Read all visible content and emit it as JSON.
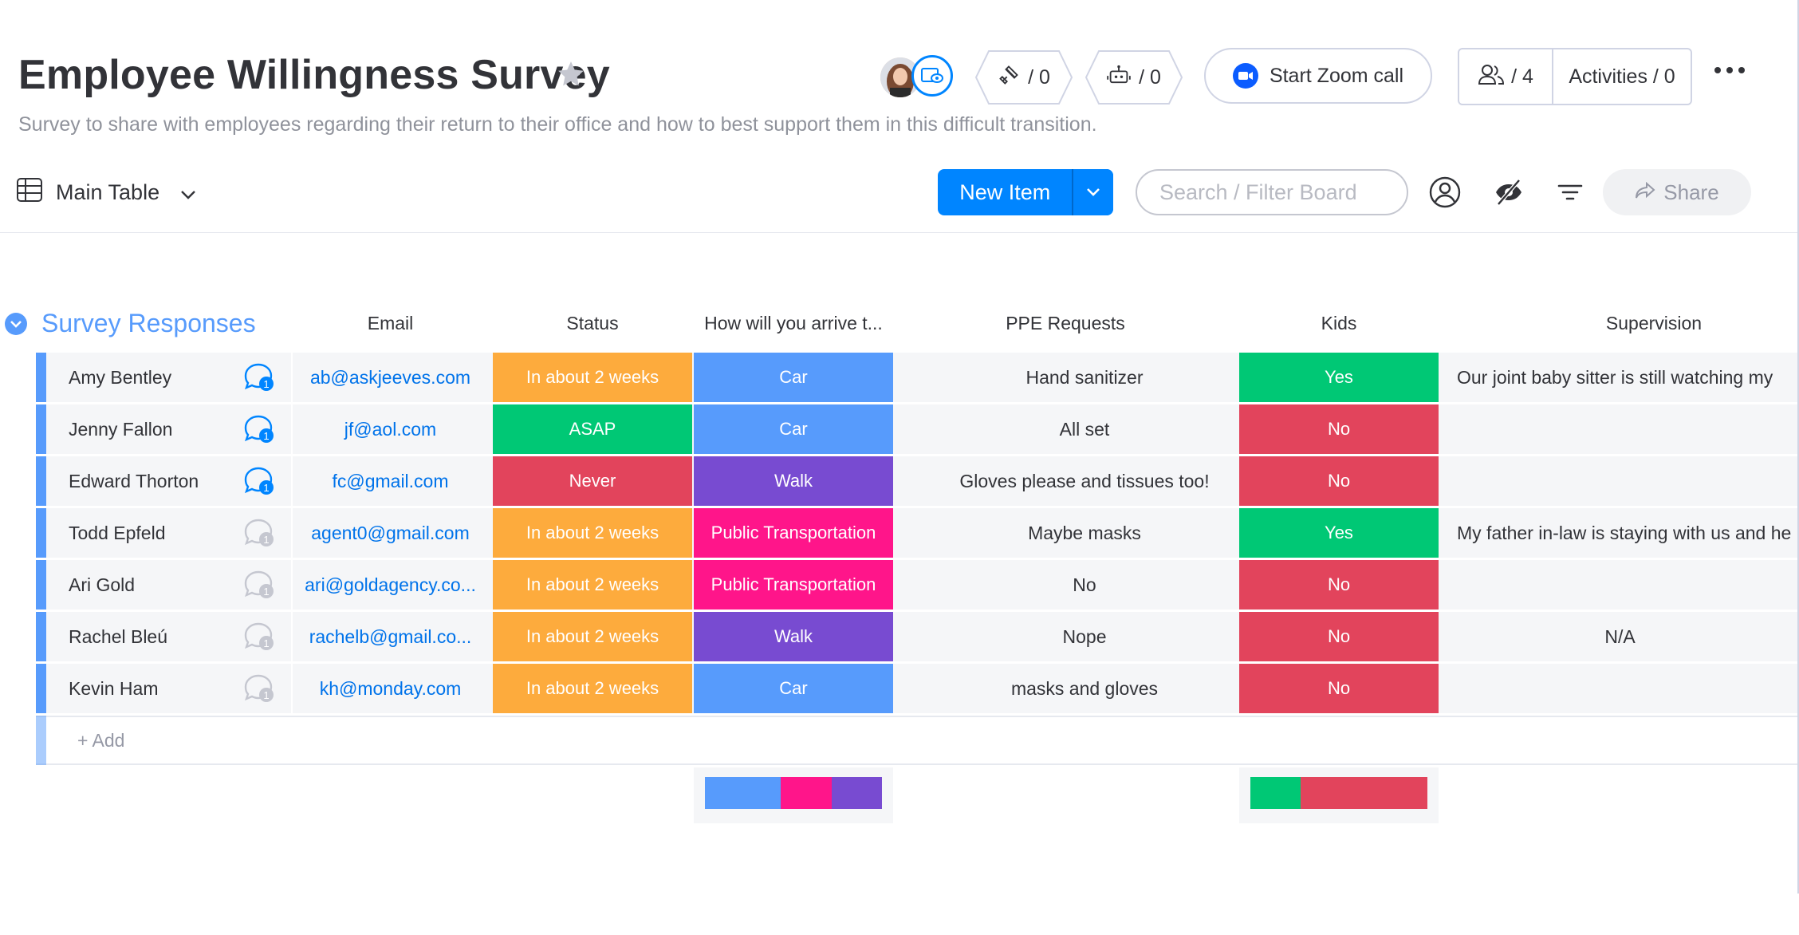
{
  "board": {
    "title": "Employee Willingness Survey",
    "description": "Survey to share with employees regarding their return to their office and how to best support them in this difficult transition."
  },
  "header": {
    "integrations_count": "/ 0",
    "automations_count": "/ 0",
    "zoom_label": "Start Zoom call",
    "members_count": "/ 4",
    "activities_label": "Activities / 0"
  },
  "toolbar": {
    "view_label": "Main Table",
    "new_item_label": "New Item",
    "search_placeholder": "Search / Filter Board",
    "share_label": "Share"
  },
  "group": {
    "title": "Survey Responses",
    "columns": [
      "Email",
      "Status",
      "How will you arrive t...",
      "PPE Requests",
      "Kids",
      "Supervision"
    ],
    "add_label": "+ Add",
    "rows": [
      {
        "name": "Amy Bentley",
        "updates": "1",
        "updates_active": true,
        "email": "ab@askjeeves.com",
        "status": "In about 2 weeks",
        "arrive": "Car",
        "ppe": "Hand sanitizer",
        "kids": "Yes",
        "supervision": "Our joint baby sitter is still watching my"
      },
      {
        "name": "Jenny Fallon",
        "updates": "1",
        "updates_active": true,
        "email": "jf@aol.com",
        "status": "ASAP",
        "arrive": "Car",
        "ppe": "All set",
        "kids": "No",
        "supervision": ""
      },
      {
        "name": "Edward Thorton",
        "updates": "1",
        "updates_active": true,
        "email": "fc@gmail.com",
        "status": "Never",
        "arrive": "Walk",
        "ppe": "Gloves please and tissues too!",
        "kids": "No",
        "supervision": ""
      },
      {
        "name": "Todd Epfeld",
        "updates": "1",
        "updates_active": false,
        "email": "agent0@gmail.com",
        "status": "In about 2 weeks",
        "arrive": "Public Transportation",
        "ppe": "Maybe masks",
        "kids": "Yes",
        "supervision": "My father in-law is staying with us and he"
      },
      {
        "name": "Ari Gold",
        "updates": "1",
        "updates_active": false,
        "email": "ari@goldagency.co...",
        "status": "In about 2 weeks",
        "arrive": "Public Transportation",
        "ppe": "No",
        "kids": "No",
        "supervision": ""
      },
      {
        "name": "Rachel Bleú",
        "updates": "1",
        "updates_active": false,
        "email": "rachelb@gmail.co...",
        "status": "In about 2 weeks",
        "arrive": "Walk",
        "ppe": "Nope",
        "kids": "No",
        "supervision": "N/A"
      },
      {
        "name": "Kevin Ham",
        "updates": "1",
        "updates_active": false,
        "email": "kh@monday.com",
        "status": "In about 2 weeks",
        "arrive": "Car",
        "ppe": "masks and gloves",
        "kids": "No",
        "supervision": ""
      }
    ]
  },
  "colors": {
    "accent": "#0085ff",
    "group": "#579bfc",
    "In about 2 weeks": "#fdab3d",
    "ASAP": "#00c875",
    "Never": "#e2445c",
    "Car": "#579bfc",
    "Walk": "#784bd1",
    "Public Transportation": "#ff158a",
    "Yes": "#00c875",
    "No": "#e2445c"
  },
  "summary": {
    "arrive": [
      {
        "label": "Car",
        "count": 3
      },
      {
        "label": "Public Transportation",
        "count": 2
      },
      {
        "label": "Walk",
        "count": 2
      }
    ],
    "kids": [
      {
        "label": "Yes",
        "count": 2
      },
      {
        "label": "No",
        "count": 5
      }
    ]
  }
}
